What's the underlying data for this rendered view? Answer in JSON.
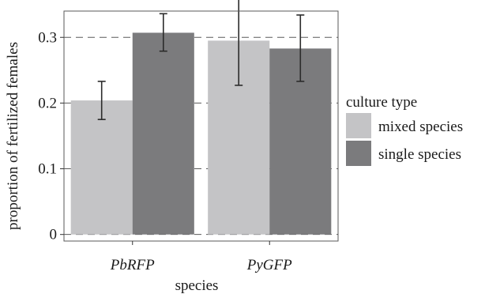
{
  "chart_data": {
    "type": "bar",
    "title": "",
    "xlabel": "species",
    "ylabel": "proportion of fertilized females",
    "categories": [
      "PbRFP",
      "PyGFP"
    ],
    "categories_italic": true,
    "ylim": [
      -0.01,
      0.34
    ],
    "yticks": [
      0,
      0.1,
      0.2,
      0.3
    ],
    "ytick_labels": [
      "0",
      "0.1",
      "0.2",
      "0.3"
    ],
    "grid": "horizontal dashed at major ticks",
    "legend": {
      "title": "culture type",
      "placement": "right"
    },
    "series": [
      {
        "name": "mixed species",
        "color": "#c4c4c6",
        "values": [
          0.204,
          0.295
        ],
        "error_low": [
          0.175,
          0.227
        ],
        "error_high": [
          0.233,
          0.364
        ]
      },
      {
        "name": "single species",
        "color": "#7b7b7d",
        "values": [
          0.307,
          0.283
        ],
        "error_low": [
          0.279,
          0.233
        ],
        "error_high": [
          0.336,
          0.334
        ]
      }
    ]
  }
}
